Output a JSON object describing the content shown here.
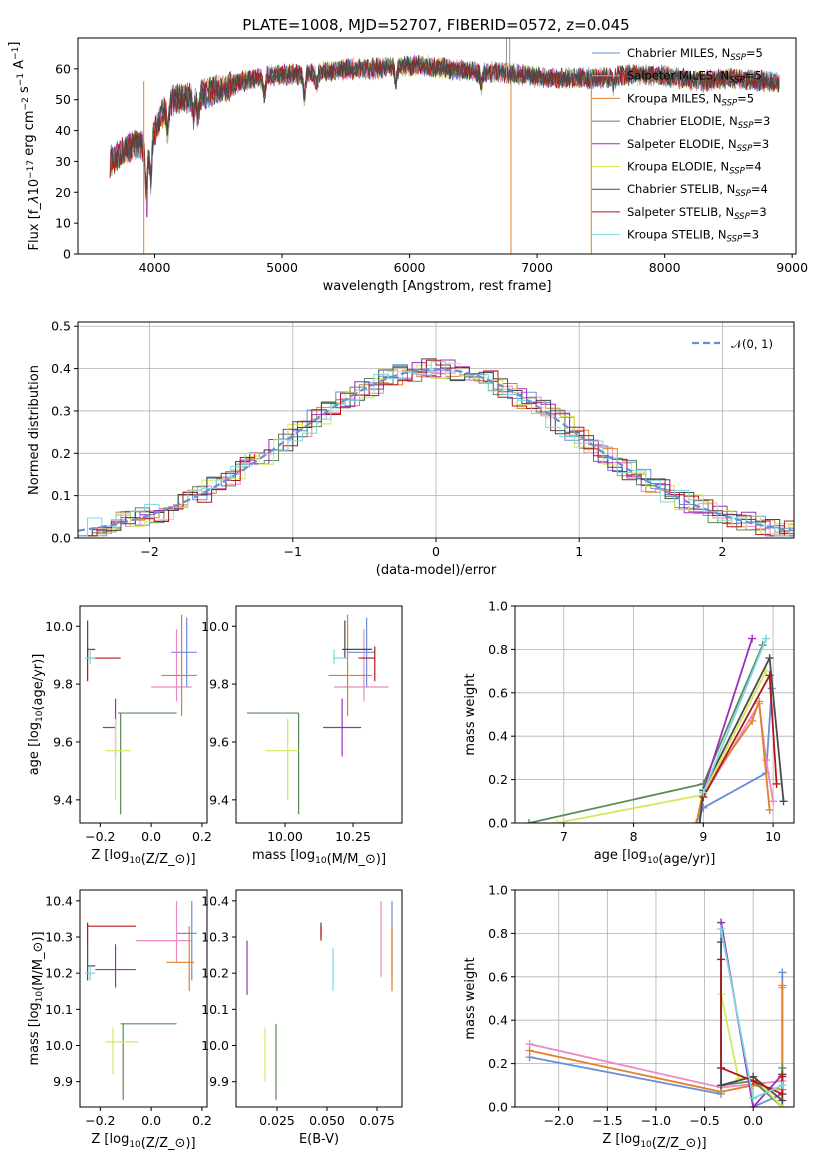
{
  "figure_title": "PLATE=1008, MJD=52707, FIBERID=0572, z=0.045",
  "colors": {
    "chabrier_miles": "#6a8fd8",
    "salpeter_miles": "#e98ac5",
    "kroupa_miles": "#e0812a",
    "chabrier_elodie": "#5a8a5a",
    "salpeter_elodie": "#9b30b8",
    "kroupa_elodie": "#d4e85a",
    "chabrier_stelib": "#4a4a4a",
    "salpeter_stelib": "#b01818",
    "kroupa_stelib": "#7ad8e0"
  },
  "chart_data": [
    {
      "type": "line",
      "id": "spectrum",
      "xlabel": "wavelength [Angstrom, rest frame]",
      "ylabel": "Flux [f$_\\lambda$10$^{-17}$ erg cm$^{-2}$ s$^{-1}$ A$^{-1}$]",
      "xlim": [
        3400,
        9030
      ],
      "ylim": [
        0,
        70
      ],
      "xticks": [
        "4000",
        "5000",
        "6000",
        "7000",
        "8000",
        "9000"
      ],
      "yticks": [
        "0",
        "10",
        "20",
        "30",
        "40",
        "50",
        "60"
      ],
      "x_range": [
        3650,
        8900
      ],
      "continuum": {
        "x": [
          3650,
          3750,
          3850,
          3950,
          4050,
          4150,
          4300,
          4500,
          4700,
          4900,
          5100,
          5300,
          5500,
          5700,
          5900,
          6100,
          6300,
          6500,
          6700,
          6900,
          7100,
          7300,
          7500,
          7700,
          7900,
          8100,
          8300,
          8500,
          8700,
          8900
        ],
        "y": [
          30,
          33,
          36,
          34,
          45,
          50,
          51,
          53,
          56,
          58,
          58,
          59,
          60,
          60,
          61,
          61,
          60,
          59,
          59,
          58,
          57,
          57,
          57,
          58,
          58,
          57,
          56,
          57,
          56,
          56
        ]
      },
      "legend_position": "right",
      "series": [
        {
          "name": "Chabrier MILES, N",
          "sub": "SSP",
          "suffix": "=5",
          "color_key": "chabrier_miles"
        },
        {
          "name": "Salpeter MILES, N",
          "sub": "SSP",
          "suffix": "=5",
          "color_key": "salpeter_miles"
        },
        {
          "name": "Kroupa MILES, N",
          "sub": "SSP",
          "suffix": "=5",
          "color_key": "kroupa_miles"
        },
        {
          "name": "Chabrier ELODIE, N",
          "sub": "SSP",
          "suffix": "=3",
          "color_key": "chabrier_elodie"
        },
        {
          "name": "Salpeter ELODIE, N",
          "sub": "SSP",
          "suffix": "=3",
          "color_key": "salpeter_elodie"
        },
        {
          "name": "Kroupa ELODIE, N",
          "sub": "SSP",
          "suffix": "=4",
          "color_key": "kroupa_elodie"
        },
        {
          "name": "Chabrier STELIB, N",
          "sub": "SSP",
          "suffix": "=4",
          "color_key": "chabrier_stelib"
        },
        {
          "name": "Salpeter STELIB, N",
          "sub": "SSP",
          "suffix": "=3",
          "color_key": "salpeter_stelib"
        },
        {
          "name": "Kroupa STELIB, N",
          "sub": "SSP",
          "suffix": "=3",
          "color_key": "kroupa_stelib"
        }
      ]
    },
    {
      "type": "histogram",
      "id": "residuals",
      "xlabel": "(data-model)/error",
      "ylabel": "Normed distribution",
      "xlim": [
        -2.5,
        2.5
      ],
      "ylim": [
        0,
        0.51
      ],
      "xticks": [
        "−2",
        "−1",
        "0",
        "1",
        "2"
      ],
      "yticks": [
        "0.0",
        "0.1",
        "0.2",
        "0.3",
        "0.4",
        "0.5"
      ],
      "bin_width": 0.1,
      "grid": true,
      "legend_position": "top-right",
      "reference": {
        "name": "𝒩(0, 1)",
        "style": "dashed",
        "color": "#6a8fd8",
        "mean": 0,
        "sigma": 1
      }
    },
    {
      "type": "errorbar",
      "id": "age_vs_Z",
      "xlabel": "Z [log$_{10}$(Z/Z$_\\odot$)]",
      "ylabel": "age  [log$_{10}$(age/yr)]",
      "xlim": [
        -0.28,
        0.22
      ],
      "ylim": [
        9.32,
        10.07
      ],
      "xticks": [
        "−0.2",
        "0.0",
        "0.2"
      ],
      "yticks": [
        "9.4",
        "9.6",
        "9.8",
        "10.0"
      ],
      "points": [
        {
          "x": 0.14,
          "xerr": [
            0.06,
            0.04
          ],
          "y": 9.91,
          "yerr": [
            0.12,
            0.12
          ],
          "color_key": "chabrier_miles"
        },
        {
          "x": 0.1,
          "xerr": [
            0.1,
            0.06
          ],
          "y": 9.79,
          "yerr": [
            0.05,
            0.2
          ],
          "color_key": "salpeter_miles"
        },
        {
          "x": 0.12,
          "xerr": [
            0.08,
            0.06
          ],
          "y": 9.83,
          "yerr": [
            0.14,
            0.21
          ],
          "color_key": "kroupa_miles"
        },
        {
          "x": -0.12,
          "xerr": [
            0.01,
            0.22
          ],
          "y": 9.7,
          "yerr": [
            0.35,
            0.0
          ],
          "color_key": "chabrier_elodie"
        },
        {
          "x": -0.14,
          "xerr": [
            0.05,
            0.0
          ],
          "y": 9.65,
          "yerr": [
            0.1,
            0.1
          ],
          "color_key": "salpeter_elodie"
        },
        {
          "x": -0.14,
          "xerr": [
            0.04,
            0.06
          ],
          "y": 9.57,
          "yerr": [
            0.17,
            0.11
          ],
          "color_key": "kroupa_elodie"
        },
        {
          "x": -0.25,
          "xerr": [
            0.0,
            0.03
          ],
          "y": 9.92,
          "yerr": [
            0.03,
            0.1
          ],
          "color_key": "chabrier_stelib"
        },
        {
          "x": -0.25,
          "xerr": [
            0.0,
            0.13
          ],
          "y": 9.89,
          "yerr": [
            0.08,
            0.04
          ],
          "color_key": "salpeter_stelib"
        },
        {
          "x": -0.24,
          "xerr": [
            0.02,
            0.02
          ],
          "y": 9.89,
          "yerr": [
            0.02,
            0.03
          ],
          "color_key": "kroupa_stelib"
        }
      ]
    },
    {
      "type": "errorbar",
      "id": "age_vs_mass",
      "xlabel": "mass [log$_{10}$(M/M$_\\odot$)]",
      "ylabel": "",
      "xlim": [
        9.82,
        10.43
      ],
      "ylim": [
        9.32,
        10.07
      ],
      "xticks": [
        "10.00",
        "10.25"
      ],
      "yticks": [
        "9.4",
        "9.6",
        "9.8",
        "10.0"
      ],
      "points": [
        {
          "x": 10.3,
          "xerr": [
            0.07,
            0.03
          ],
          "y": 9.91,
          "yerr": [
            0.12,
            0.12
          ],
          "color_key": "chabrier_miles"
        },
        {
          "x": 10.29,
          "xerr": [
            0.11,
            0.09
          ],
          "y": 9.79,
          "yerr": [
            0.05,
            0.2
          ],
          "color_key": "salpeter_miles"
        },
        {
          "x": 10.23,
          "xerr": [
            0.07,
            0.09
          ],
          "y": 9.83,
          "yerr": [
            0.14,
            0.21
          ],
          "color_key": "kroupa_miles"
        },
        {
          "x": 10.05,
          "xerr": [
            0.19,
            0.0
          ],
          "y": 9.7,
          "yerr": [
            0.35,
            0.0
          ],
          "color_key": "chabrier_elodie"
        },
        {
          "x": 10.21,
          "xerr": [
            0.07,
            0.07
          ],
          "y": 9.65,
          "yerr": [
            0.1,
            0.1
          ],
          "color_key": "salpeter_elodie"
        },
        {
          "x": 10.01,
          "xerr": [
            0.08,
            0.04
          ],
          "y": 9.57,
          "yerr": [
            0.17,
            0.11
          ],
          "color_key": "kroupa_elodie"
        },
        {
          "x": 10.22,
          "xerr": [
            0.01,
            0.1
          ],
          "y": 9.92,
          "yerr": [
            0.03,
            0.1
          ],
          "color_key": "chabrier_stelib"
        },
        {
          "x": 10.33,
          "xerr": [
            0.06,
            0.0
          ],
          "y": 9.89,
          "yerr": [
            0.08,
            0.04
          ],
          "color_key": "salpeter_stelib"
        },
        {
          "x": 10.18,
          "xerr": [
            0.0,
            0.05
          ],
          "y": 9.89,
          "yerr": [
            0.02,
            0.03
          ],
          "color_key": "kroupa_stelib"
        }
      ]
    },
    {
      "type": "line",
      "id": "mass_weight_vs_age",
      "xlabel": "age  [log$_{10}$(age/yr)]",
      "ylabel": "mass weight",
      "xlim": [
        6.3,
        10.3
      ],
      "ylim": [
        0,
        1.0
      ],
      "xticks": [
        "7",
        "8",
        "9",
        "10"
      ],
      "yticks": [
        "0.0",
        "0.2",
        "0.4",
        "0.6",
        "0.8",
        "1.0"
      ],
      "grid": true,
      "series": [
        {
          "color_key": "chabrier_miles",
          "x": [
            8.9,
            9.0,
            9.9,
            9.98
          ],
          "y": [
            0.0,
            0.07,
            0.23,
            0.62
          ]
        },
        {
          "color_key": "salpeter_miles",
          "x": [
            8.9,
            9.0,
            9.8,
            9.9,
            10.0
          ],
          "y": [
            0.0,
            0.12,
            0.55,
            0.29,
            0.1
          ]
        },
        {
          "color_key": "kroupa_miles",
          "x": [
            8.9,
            9.0,
            9.7,
            9.8,
            9.95
          ],
          "y": [
            0.0,
            0.15,
            0.47,
            0.56,
            0.06
          ]
        },
        {
          "color_key": "chabrier_elodie",
          "x": [
            6.5,
            9.0,
            9.85
          ],
          "y": [
            0.0,
            0.18,
            0.82
          ]
        },
        {
          "color_key": "salpeter_elodie",
          "x": [
            9.0,
            9.7
          ],
          "y": [
            0.15,
            0.85
          ]
        },
        {
          "color_key": "kroupa_elodie",
          "x": [
            6.9,
            9.0,
            9.9
          ],
          "y": [
            0.0,
            0.13,
            0.7
          ]
        },
        {
          "color_key": "chabrier_stelib",
          "x": [
            8.95,
            9.0,
            9.95,
            10.15
          ],
          "y": [
            0.0,
            0.15,
            0.76,
            0.1
          ]
        },
        {
          "color_key": "salpeter_stelib",
          "x": [
            9.0,
            9.95,
            10.05
          ],
          "y": [
            0.12,
            0.68,
            0.18
          ]
        },
        {
          "color_key": "kroupa_stelib",
          "x": [
            9.0,
            9.9
          ],
          "y": [
            0.14,
            0.85
          ]
        }
      ]
    },
    {
      "type": "errorbar",
      "id": "mass_vs_Z",
      "xlabel": "Z [log$_{10}$(Z/Z$_\\odot$)]",
      "ylabel": "mass [log$_{10}$(M/M$_\\odot$)]",
      "xlim": [
        -0.28,
        0.22
      ],
      "ylim": [
        9.83,
        10.43
      ],
      "xticks": [
        "−0.2",
        "0.0",
        "0.2"
      ],
      "yticks": [
        "9.9",
        "10.0",
        "10.1",
        "10.2",
        "10.3",
        "10.4"
      ],
      "points": [
        {
          "x": 0.16,
          "xerr": [
            0.06,
            0.02
          ],
          "y": 10.31,
          "yerr": [
            0.13,
            0.09
          ],
          "color_key": "chabrier_miles"
        },
        {
          "x": 0.1,
          "xerr": [
            0.16,
            0.06
          ],
          "y": 10.29,
          "yerr": [
            0.06,
            0.11
          ],
          "color_key": "salpeter_miles"
        },
        {
          "x": 0.15,
          "xerr": [
            0.09,
            0.02
          ],
          "y": 10.23,
          "yerr": [
            0.08,
            0.1
          ],
          "color_key": "kroupa_miles"
        },
        {
          "x": -0.11,
          "xerr": [
            0.01,
            0.21
          ],
          "y": 10.06,
          "yerr": [
            0.21,
            0.0
          ],
          "color_key": "chabrier_elodie"
        },
        {
          "x": -0.14,
          "xerr": [
            0.08,
            0.08
          ],
          "y": 10.21,
          "yerr": [
            0.05,
            0.07
          ],
          "color_key": "salpeter_elodie"
        },
        {
          "x": -0.15,
          "xerr": [
            0.03,
            0.1
          ],
          "y": 10.01,
          "yerr": [
            0.09,
            0.04
          ],
          "color_key": "kroupa_elodie"
        },
        {
          "x": -0.25,
          "xerr": [
            0.0,
            0.03
          ],
          "y": 10.22,
          "yerr": [
            0.04,
            0.05
          ],
          "color_key": "chabrier_stelib"
        },
        {
          "x": -0.25,
          "xerr": [
            0.0,
            0.19
          ],
          "y": 10.33,
          "yerr": [
            0.06,
            0.01
          ],
          "color_key": "salpeter_stelib"
        },
        {
          "x": -0.24,
          "xerr": [
            0.02,
            0.02
          ],
          "y": 10.2,
          "yerr": [
            0.02,
            0.02
          ],
          "color_key": "kroupa_stelib"
        }
      ]
    },
    {
      "type": "errorbar",
      "id": "mass_vs_ebv",
      "xlabel": "E(B-V)",
      "ylabel": "",
      "xlim": [
        0.0045,
        0.0875
      ],
      "ylim": [
        9.83,
        10.43
      ],
      "xticks": [
        "0.025",
        "0.050",
        "0.075"
      ],
      "yticks": [
        "9.9",
        "10.0",
        "10.1",
        "10.2",
        "10.3",
        "10.4"
      ],
      "points": [
        {
          "x": 0.0825,
          "y": 10.31,
          "yerr": [
            0.13,
            0.09
          ],
          "color_key": "chabrier_miles"
        },
        {
          "x": 0.077,
          "y": 10.29,
          "yerr": [
            0.1,
            0.11
          ],
          "color_key": "salpeter_miles"
        },
        {
          "x": 0.0825,
          "y": 10.23,
          "yerr": [
            0.08,
            0.1
          ],
          "color_key": "kroupa_miles"
        },
        {
          "x": 0.0245,
          "y": 10.0,
          "yerr": [
            0.15,
            0.06
          ],
          "color_key": "chabrier_elodie"
        },
        {
          "x": 0.01,
          "y": 10.21,
          "yerr": [
            0.07,
            0.08
          ],
          "color_key": "salpeter_elodie"
        },
        {
          "x": 0.019,
          "y": 10.0,
          "yerr": [
            0.1,
            0.05
          ],
          "color_key": "kroupa_elodie"
        },
        {
          "x": 0.047,
          "y": 10.32,
          "yerr": [
            0.02,
            0.02
          ],
          "color_key": "chabrier_stelib"
        },
        {
          "x": 0.047,
          "y": 10.3,
          "yerr": [
            0.01,
            0.03
          ],
          "color_key": "salpeter_stelib"
        },
        {
          "x": 0.053,
          "y": 10.21,
          "yerr": [
            0.06,
            0.06
          ],
          "color_key": "kroupa_stelib"
        }
      ]
    },
    {
      "type": "line",
      "id": "mass_weight_vs_Z",
      "xlabel": "Z [log$_{10}$(Z/Z$_\\odot$)]",
      "ylabel": "mass weight",
      "xlim": [
        -2.45,
        0.42
      ],
      "ylim": [
        0,
        1.0
      ],
      "xticks": [
        "−2.0",
        "−1.5",
        "−1.0",
        "−0.5",
        "0.0"
      ],
      "yticks": [
        "0.0",
        "0.2",
        "0.4",
        "0.6",
        "0.8",
        "1.0"
      ],
      "grid": true,
      "series": [
        {
          "color_key": "chabrier_miles",
          "x": [
            -2.3,
            -0.33,
            -0.33,
            0.0,
            0.3,
            0.3
          ],
          "y": [
            0.23,
            0.06,
            0.85,
            0.0,
            0.06,
            0.62
          ]
        },
        {
          "color_key": "salpeter_miles",
          "x": [
            -2.3,
            -0.33,
            0.3,
            0.3
          ],
          "y": [
            0.29,
            0.09,
            0.12,
            0.55
          ]
        },
        {
          "color_key": "kroupa_miles",
          "x": [
            -2.3,
            -0.33,
            0.0,
            0.3,
            0.3
          ],
          "y": [
            0.26,
            0.07,
            0.1,
            0.08,
            0.56
          ]
        },
        {
          "color_key": "chabrier_elodie",
          "x": [
            -0.33,
            0.0,
            0.3,
            0.3
          ],
          "y": [
            0.1,
            0.12,
            0.0,
            0.18
          ]
        },
        {
          "color_key": "salpeter_elodie",
          "x": [
            -0.33,
            0.0,
            0.3
          ],
          "y": [
            0.85,
            0.0,
            0.15
          ]
        },
        {
          "color_key": "kroupa_elodie",
          "x": [
            -0.33,
            -0.15,
            0.0,
            0.3
          ],
          "y": [
            0.52,
            0.13,
            0.14,
            0.0
          ]
        },
        {
          "color_key": "chabrier_stelib",
          "x": [
            -0.33,
            -0.33,
            0.0,
            0.3,
            0.3
          ],
          "y": [
            0.76,
            0.1,
            0.14,
            0.03,
            0.15
          ]
        },
        {
          "color_key": "salpeter_stelib",
          "x": [
            -0.33,
            -0.33,
            0.0,
            0.3,
            0.3
          ],
          "y": [
            0.68,
            0.18,
            0.12,
            0.06,
            0.14
          ]
        },
        {
          "color_key": "kroupa_stelib",
          "x": [
            -0.33,
            0.0,
            0.3
          ],
          "y": [
            0.82,
            0.04,
            0.1
          ]
        }
      ]
    }
  ]
}
